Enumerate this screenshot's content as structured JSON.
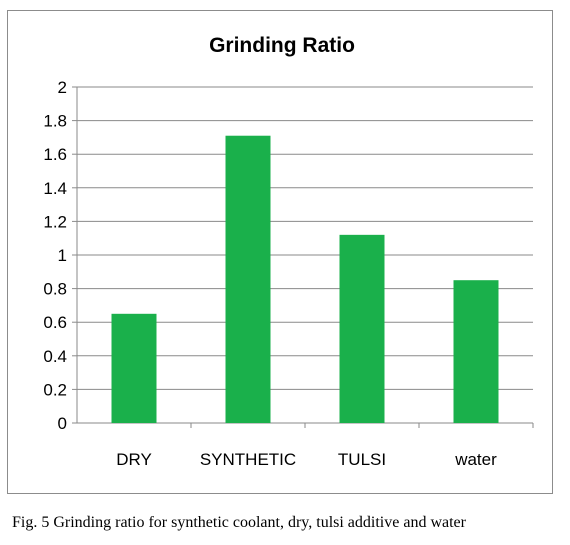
{
  "chart_data": {
    "type": "bar",
    "title": "Grinding Ratio",
    "categories": [
      "DRY",
      "SYNTHETIC",
      "TULSI",
      "water"
    ],
    "values": [
      0.65,
      1.71,
      1.12,
      0.85
    ],
    "ylim": [
      0,
      2
    ],
    "yticks": [
      "0",
      "0.2",
      "0.4",
      "0.6",
      "0.8",
      "1",
      "1.2",
      "1.4",
      "1.6",
      "1.8",
      "2"
    ],
    "grid": true,
    "legend": "none",
    "bar_color": "#1ab04b",
    "xlabel": "",
    "ylabel": ""
  },
  "caption": "Fig. 5  Grinding ratio for synthetic coolant, dry, tulsi additive and water"
}
